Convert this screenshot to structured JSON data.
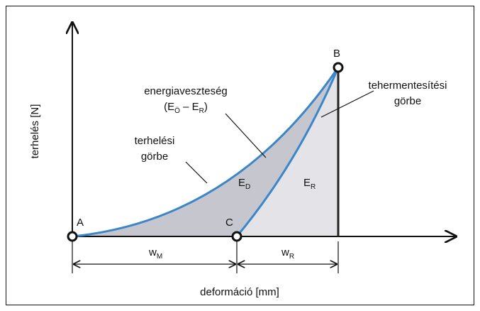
{
  "points": {
    "a": "A",
    "b": "B",
    "c": "C"
  },
  "axes": {
    "y_label": "terhelés [N]",
    "x_label": "deformáció [mm]"
  },
  "energy_loss": {
    "title": "energiaveszteség",
    "formula": [
      "(E",
      "Ö",
      " – E",
      "R",
      ")"
    ]
  },
  "loading_curve": [
    "terhelési",
    "görbe"
  ],
  "unloading_curve": [
    "tehermentesítési",
    "görbe"
  ],
  "areas": {
    "ed": [
      "E",
      "D"
    ],
    "er": [
      "E",
      "R"
    ]
  },
  "dimensions": {
    "wm": [
      "w",
      "M"
    ],
    "wr": [
      "w",
      "R"
    ]
  }
}
